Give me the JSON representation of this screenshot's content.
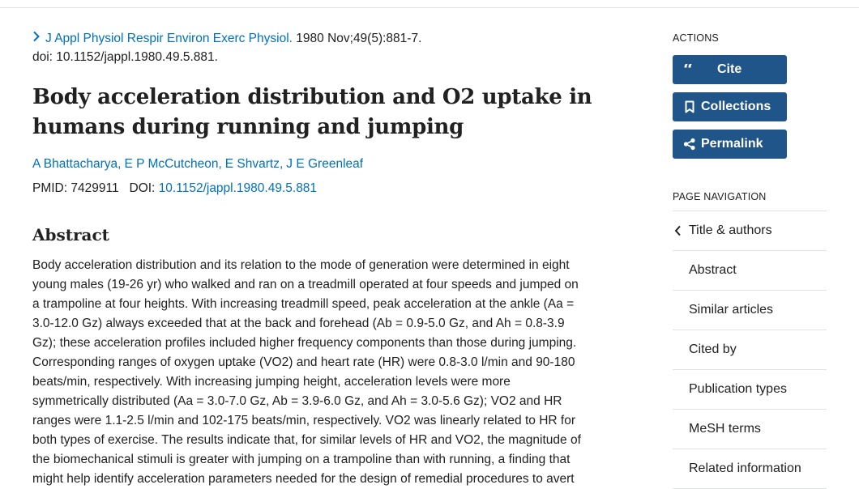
{
  "citation": {
    "journal": "J Appl Physiol Respir Environ Exerc Physiol.",
    "date": "1980 Nov;49(5):881-7.",
    "doi_line": "doi: 10.1152/jappl.1980.49.5.881."
  },
  "title_lines": [
    "Body acceleration distribution and O2 uptake in",
    "humans during running and jumping"
  ],
  "authors": [
    "A Bhattacharya",
    "E P McCutcheon",
    "E Shvartz",
    "J E Greenleaf"
  ],
  "ids": {
    "pmid_label": "PMID:",
    "pmid": "7429911",
    "doi_label": "DOI:",
    "doi": "10.1152/jappl.1980.49.5.881"
  },
  "abstract": {
    "heading": "Abstract",
    "lines": [
      "Body acceleration distribution and its relation to the mode of generation were determined in eight",
      "young males (19-26 yr) who walked and ran on a treadmill operated at four speeds and jumped on",
      "a trampoline at four heights. With increasing treadmill speed, peak acceleration at the ankle (Aa =",
      "3.0-12.0 Gz) always exceeded that at the back and forehead (Ab = 0.9-5.0 Gz, and Ah = 0.8-3.9",
      "Gz); these acceleration profiles included higher frequency components than those during jumping.",
      "Corresponding ranges of oxygen uptake (VO2) and heart rate (HR) were 0.8-3.0 l/min and 90-180",
      "beats/min, respectively. With increasing jumping height, acceleration levels were more",
      "symmetrically distributed (Aa = 3.0-7.0 Gz, Ab = 3.9-6.0 Gz, and Ah = 3.0-5.6 Gz); VO2 and HR",
      "ranges were 1.1-2.5 l/min and 102-175 beats/min, respectively. VO2 was linearly related to HR for",
      "both types of exercise. The results indicate that, for similar levels of HR and VO2, the magnitude of",
      "the biomechanical stimuli is greater with jumping on a trampoline than with running, a finding that",
      "might help identify acceleration parameters needed for the design of remedial procedures to avert"
    ]
  },
  "sidebar": {
    "actions_label": "ACTIONS",
    "buttons": [
      "Cite",
      "Collections",
      "Permalink"
    ],
    "page_nav_label": "PAGE NAVIGATION",
    "nav_items": [
      "Title & authors",
      "Abstract",
      "Similar articles",
      "Cited by",
      "Publication types",
      "MeSH terms",
      "Related information"
    ]
  },
  "colors": {
    "link": "#0071bc",
    "button": "#20558a"
  }
}
